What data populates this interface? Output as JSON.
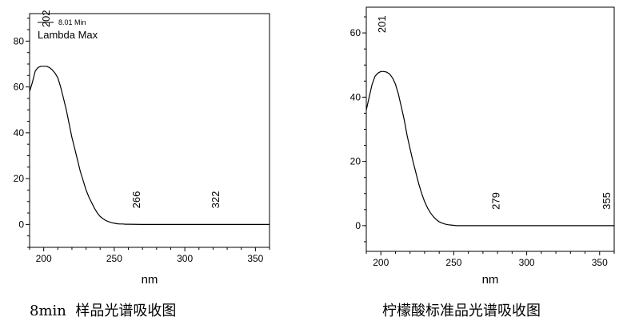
{
  "chart_data": [
    {
      "type": "line",
      "caption": "8min  样品光谱吸收图",
      "xlabel": "nm",
      "ylabel": "",
      "xlim": [
        190,
        360
      ],
      "ylim": [
        -10,
        92
      ],
      "xticks": [
        200,
        250,
        300,
        350
      ],
      "yticks": [
        0,
        20,
        40,
        60,
        80
      ],
      "legend": {
        "position": "top-left",
        "entries": [
          "8.01 Min",
          "Lambda Max"
        ]
      },
      "peak_labels": [
        {
          "value": "202",
          "x": 202,
          "y": 86
        },
        {
          "value": "266",
          "x": 266,
          "y": 7
        },
        {
          "value": "322",
          "x": 322,
          "y": 7
        }
      ],
      "series": [
        {
          "x": [
            190,
            192,
            194,
            196,
            198,
            200,
            202,
            204,
            206,
            208,
            210,
            212,
            214,
            216,
            218,
            220,
            222,
            224,
            226,
            228,
            230,
            232,
            234,
            236,
            238,
            240,
            242,
            244,
            246,
            248,
            250,
            252,
            254,
            256,
            258,
            260,
            270,
            280,
            290,
            300,
            310,
            320,
            330,
            340,
            350,
            360
          ],
          "values": [
            58,
            62,
            67,
            68.5,
            69,
            69,
            69,
            68.5,
            67.5,
            66,
            64,
            60,
            55,
            50,
            44,
            38,
            33,
            28,
            23,
            19,
            15,
            12,
            9.5,
            7,
            5,
            3.5,
            2.5,
            1.7,
            1.2,
            0.8,
            0.5,
            0.3,
            0.2,
            0.2,
            0.1,
            0.1,
            0,
            0,
            0,
            0,
            0,
            0,
            0,
            0,
            0,
            0
          ]
        }
      ]
    },
    {
      "type": "line",
      "caption": "柠檬酸标准品光谱吸收图",
      "xlabel": "nm",
      "ylabel": "",
      "xlim": [
        190,
        360
      ],
      "ylim": [
        -8,
        68
      ],
      "xticks": [
        200,
        250,
        300,
        350
      ],
      "yticks": [
        0,
        20,
        40,
        60
      ],
      "peak_labels": [
        {
          "value": "201",
          "x": 201,
          "y": 60
        },
        {
          "value": "279",
          "x": 279,
          "y": 5
        },
        {
          "value": "355",
          "x": 355,
          "y": 5
        }
      ],
      "series": [
        {
          "x": [
            190,
            192,
            194,
            196,
            198,
            200,
            202,
            204,
            206,
            208,
            210,
            212,
            214,
            216,
            218,
            220,
            222,
            224,
            226,
            228,
            230,
            232,
            234,
            236,
            238,
            240,
            242,
            244,
            246,
            248,
            250,
            252,
            254,
            256,
            258,
            260,
            270,
            280,
            290,
            300,
            310,
            320,
            330,
            340,
            350,
            360
          ],
          "values": [
            36,
            40,
            44,
            46.5,
            47.5,
            48,
            48,
            47.8,
            47.2,
            46,
            44,
            41,
            37,
            33,
            28,
            24,
            20,
            16.5,
            13,
            10,
            7.5,
            5.5,
            4,
            2.8,
            1.9,
            1.2,
            0.8,
            0.5,
            0.3,
            0.2,
            0.1,
            0,
            0,
            0,
            0,
            0,
            0,
            0,
            0,
            0,
            0,
            0,
            0,
            0,
            0,
            0
          ]
        }
      ]
    }
  ]
}
